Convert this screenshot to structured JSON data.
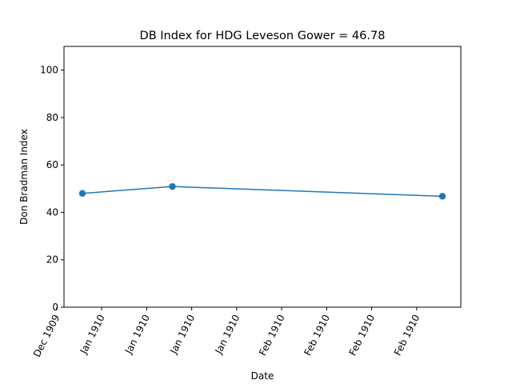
{
  "chart_data": {
    "type": "line",
    "title": "DB Index for HDG Leveson Gower = 46.78",
    "xlabel": "Date",
    "ylabel": "Don Bradman Index",
    "x_ticks": [
      "Dec 1909",
      "Jan 1910",
      "Jan 1910",
      "Jan 1910",
      "Jan 1910",
      "Feb 1910",
      "Feb 1910",
      "Feb 1910",
      "Feb 1910"
    ],
    "y_ticks": [
      0,
      20,
      40,
      60,
      80,
      100
    ],
    "ylim": [
      0,
      110
    ],
    "series": [
      {
        "points": [
          {
            "x": "1910-01-01",
            "y": 48.0
          },
          {
            "x": "1910-01-15",
            "y": 50.9
          },
          {
            "x": "1910-02-26",
            "y": 46.78
          }
        ]
      }
    ],
    "grid": false,
    "colors": {
      "line": "#1f77b4"
    }
  }
}
